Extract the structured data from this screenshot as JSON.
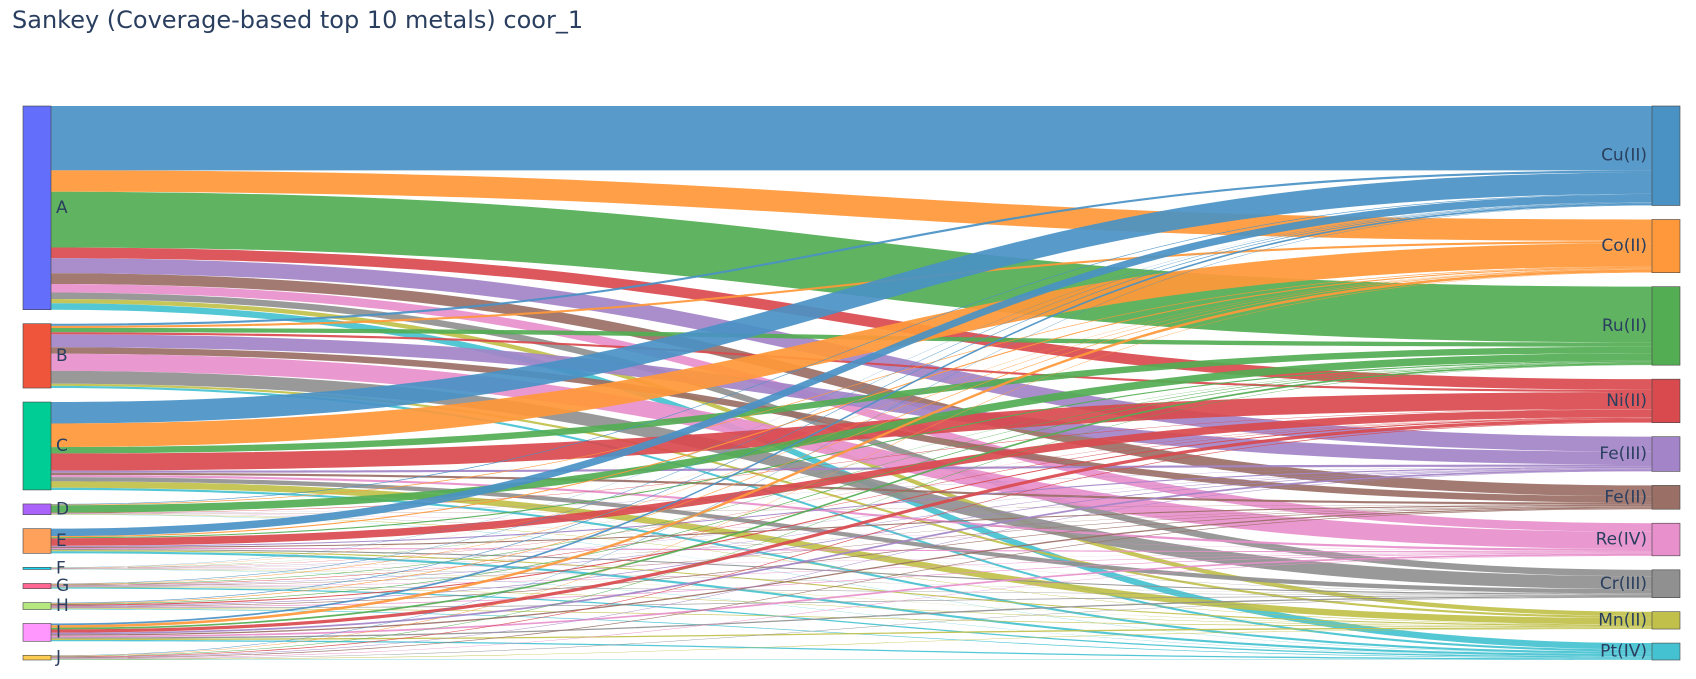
{
  "chart_data": {
    "type": "sankey",
    "title": "Sankey (Coverage-based top 10 metals) coor_1",
    "sources": [
      "A",
      "B",
      "C",
      "D",
      "E",
      "F",
      "G",
      "H",
      "I",
      "J"
    ],
    "targets": [
      "Cu(II)",
      "Co(II)",
      "Ru(II)",
      "Ni(II)",
      "Fe(III)",
      "Fe(II)",
      "Re(IV)",
      "Cr(III)",
      "Mn(II)",
      "Pt(IV)"
    ],
    "target_colors": [
      "#4a91c4",
      "#ff983a",
      "#53ad53",
      "#d94a4e",
      "#a384c8",
      "#9a6f66",
      "#e890cc",
      "#909090",
      "#c0c04a",
      "#45c2d1"
    ],
    "source_colors": [
      "#636efa",
      "#ef553b",
      "#00cc96",
      "#ab63fa",
      "#ffa15a",
      "#19d3f3",
      "#ff6692",
      "#b6e880",
      "#ff97ff",
      "#fecb52"
    ],
    "flows": {
      "A": [
        30,
        10,
        26,
        5,
        7,
        5,
        4,
        3,
        2,
        3
      ],
      "B": [
        1,
        1,
        2,
        1,
        6,
        3,
        8,
        6,
        1,
        1
      ],
      "C": [
        10,
        11,
        3,
        8,
        1,
        1,
        1,
        2,
        3,
        1
      ],
      "D": [
        0.3,
        0.3,
        3.5,
        0.2,
        0.1,
        0.1,
        0.1,
        0.1,
        0.2,
        0.1
      ],
      "E": [
        3.5,
        0.5,
        0.5,
        3.5,
        0.5,
        0.5,
        0.5,
        0.5,
        0.5,
        1.0
      ],
      "F": [
        0.1,
        0.1,
        0.1,
        0.1,
        0.1,
        0.1,
        0.1,
        0.1,
        0.1,
        0.1
      ],
      "G": [
        0.2,
        0.2,
        0.2,
        0.2,
        0.2,
        0.2,
        0.2,
        0.2,
        0.2,
        0.6
      ],
      "H": [
        0.3,
        0.3,
        0.3,
        0.5,
        0.3,
        0.3,
        0.3,
        0.3,
        0.3,
        0.3
      ],
      "I": [
        0.8,
        1.2,
        0.8,
        1.5,
        0.8,
        0.6,
        0.8,
        0.6,
        0.6,
        0.6
      ],
      "J": [
        0.2,
        0.2,
        0.2,
        0.3,
        0.2,
        0.3,
        0.2,
        0.2,
        0.2,
        0.2
      ]
    }
  }
}
